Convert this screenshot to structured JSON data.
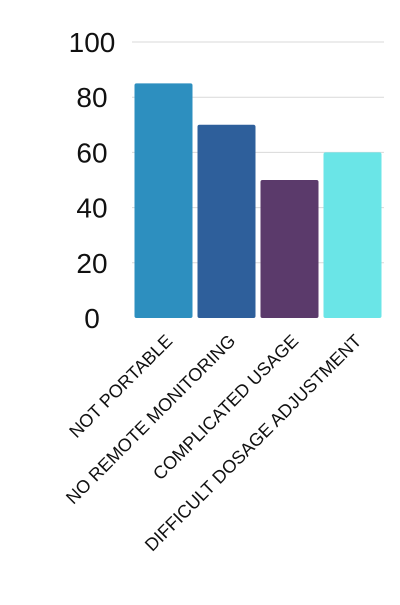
{
  "chart_data": {
    "type": "bar",
    "categories": [
      "NOT PORTABLE",
      "NO REMOTE MONITORING",
      "COMPLICATED USAGE",
      "DIFFICULT DOSAGE ADJUSTMENT"
    ],
    "values": [
      85,
      70,
      50,
      60
    ],
    "colors": [
      "#2d8fbf",
      "#2e5f9b",
      "#5b3a6b",
      "#6ae5e7"
    ],
    "ylim": [
      0,
      100
    ],
    "yticks": [
      0,
      20,
      40,
      60,
      80,
      100
    ],
    "grid": true,
    "legend": "none"
  }
}
